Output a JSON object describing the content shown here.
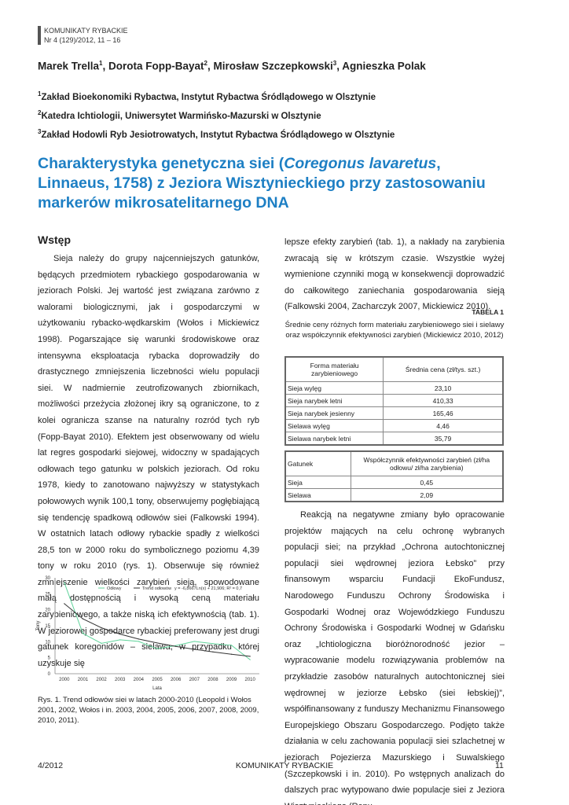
{
  "header": {
    "journal": "KOMUNIKATY RYBACKIE",
    "issue": "Nr 4 (129)/2012, 11 – 16"
  },
  "authors": [
    {
      "name": "Marek Trella",
      "sup": "1"
    },
    {
      "name": "Dorota Fopp-Bayat",
      "sup": "2"
    },
    {
      "name": "Mirosław Szczepkowski",
      "sup": "3"
    },
    {
      "name": "Agnieszka Polak",
      "sup": ""
    }
  ],
  "affiliations": [
    {
      "sup": "1",
      "text": "Zakład Bioekonomiki Rybactwa, Instytut Rybactwa Śródlądowego w Olsztynie"
    },
    {
      "sup": "2",
      "text": "Katedra Ichtiologii, Uniwersytet Warmińsko-Mazurski w Olsztynie"
    },
    {
      "sup": "3",
      "text": "Zakład Hodowli Ryb Jesiotrowatych, Instytut Rybactwa Śródlądowego w Olsztynie"
    }
  ],
  "title": {
    "part1": "Charakterystyka genetyczna siei (",
    "italic": "Coregonus lavaretus",
    "part2": ", Linnaeus, 1758) z Jeziora Wisztynieckiego przy zastosowaniu markerów mikrosatelitarnego DNA"
  },
  "section_heading": "Wstęp",
  "left_paragraph": "Sieja należy do grupy najcenniejszych gatunków, będących przedmiotem rybackiego gospodarowania w jeziorach Polski. Jej wartość jest związana zarówno z walorami biologicznymi, jak i gospodarczymi w użytkowaniu rybacko-wędkarskim (Wołos i Mickiewicz 1998). Pogarszające się warunki środowiskowe oraz intensywna eksploatacja rybacka doprowadziły do drastycznego zmniejszenia liczebności wielu populacji siei. W nadmiernie zeutrofizowanych zbiornikach, możliwości przeżycia złożonej ikry są ograniczone, to z kolei ogranicza szanse na naturalny rozród tych ryb (Fopp-Bayat 2010). Efektem jest obserwowany od wielu lat regres gospodarki siejowej, widoczny w spadających odłowach tego gatunku w polskich jeziorach. Od roku 1978, kiedy to zanotowano najwyższy w statystykach połowowych wynik 100,1 tony, obserwujemy pogłębiającą się tendencję spadkową odłowów siei (Falkowski 1994). W ostatnich latach odłowy rybackie spadły z wielkości 28,5 ton w 2000 roku do symbolicznego poziomu 4,39 tony w roku 2010 (rys. 1). Obserwuje się również zmniejszenie wielkości zarybień sieją, spowodowane małą dostępnością i wysoką ceną materiału zarybieniowego, a także niską ich efektywnością (tab. 1). W jeziorowej gospodarce rybackiej preferowany jest drugi gatunek koregonidów – sielawa, w przypadku której uzyskuje się",
  "right_paragraph1": "lepsze efekty zarybień (tab. 1), a nakłady na zarybienia zwracają się w krótszym czasie. Wszystkie wyżej wymienione czynniki mogą w konsekwencji doprowadzić do całkowitego zaniechania gospodarowania sieją (Falkowski 2004, Zacharczyk 2007, Mickiewicz 2010).",
  "right_paragraph2": "Reakcją na negatywne zmiany było opracowanie projektów mających na celu ochronę wybranych populacji siei; na przykład „Ochrona autochtonicznej populacji siei wędrownej jeziora Łebsko” przy finansowym wsparciu Fundacji EkoFundusz, Narodowego Funduszu Ochrony Środowiska i Gospodarki Wodnej oraz Wojewódzkiego Funduszu Ochrony Środowiska i Gospodarki Wodnej w Gdańsku oraz „Ichtiologiczna bioróżnorodność jezior – wypracowanie modelu rozwiązywania problemów na przykładzie zasobów naturalnych autochtonicznej siei wędrownej w jeziorze Łebsko (siei łebskiej)”, współfinansowany z funduszy Mechanizmu Finansowego Europejskiego Obszaru Gospodarczego. Podjęto także działania w celu zachowania populacji siei szlachetnej w jeziorach Pojezierza Mazurskiego i Suwalskiego (Szczepkowski i in. 2010). Po wstępnych analizach do dalszych prac wytypowano dwie populacje siei z Jeziora Wisztynieckiego (Repu-",
  "table1": {
    "label": "TABELA 1",
    "caption": "Średnie ceny różnych form materiału zarybieniowego siei i sielawy oraz współczynnik efektywności zarybień (Mickiewicz 2010, 2012)",
    "headers": [
      "Forma materiału zarybieniowego",
      "Średnia cena (zł/tys. szt.)"
    ],
    "rows": [
      [
        "Sieja wylęg",
        "23,10"
      ],
      [
        "Sieja narybek letni",
        "410,33"
      ],
      [
        "Sieja narybek jesienny",
        "165,46"
      ],
      [
        "Sielawa wylęg",
        "4,46"
      ],
      [
        "Sielawa narybek letni",
        "35,79"
      ]
    ]
  },
  "table2": {
    "headers": [
      "Gatunek",
      "Współczynnik efektywności zarybień (zł/ha odłowu/ zł/ha zarybienia)"
    ],
    "rows": [
      [
        "Sieja",
        "0,45"
      ],
      [
        "Sielawa",
        "2,09"
      ]
    ]
  },
  "chart_data": {
    "type": "line",
    "xlabel": "Lata",
    "ylabel": "Tony",
    "ylim": [
      0,
      30
    ],
    "yticks": [
      "0",
      "5",
      "10",
      "15",
      "20",
      "25",
      "30"
    ],
    "categories": [
      "2000",
      "2001",
      "2002",
      "2003",
      "2004",
      "2005",
      "2006",
      "2007",
      "2008",
      "2009",
      "2010"
    ],
    "series": [
      {
        "name": "Odłowy",
        "color": "#5fd39a",
        "values": [
          28.5,
          12.6,
          9.5,
          10.6,
          10.1,
          7.8,
          8.8,
          10.1,
          9.4,
          8.9,
          4.39
        ]
      },
      {
        "name": "Trend odłowów",
        "color": "#333333",
        "values": [
          21.91,
          17.15,
          14.36,
          12.39,
          10.86,
          9.61,
          8.55,
          7.63,
          6.82,
          6.09,
          5.44
        ]
      }
    ],
    "annotation": "y = -6,8667Ln(x) + 21,906; R² = 0,7",
    "legend": "top"
  },
  "figure_caption": "Rys. 1. Trend odłowów siei w latach 2000-2010 (Leopold i Wołos 2001, 2002, Wołos i in. 2003, 2004, 2005, 2006, 2007, 2008, 2009, 2010, 2011).",
  "footer": {
    "left": "4/2012",
    "center": "KOMUNIKATY RYBACKIE",
    "right": "11"
  }
}
